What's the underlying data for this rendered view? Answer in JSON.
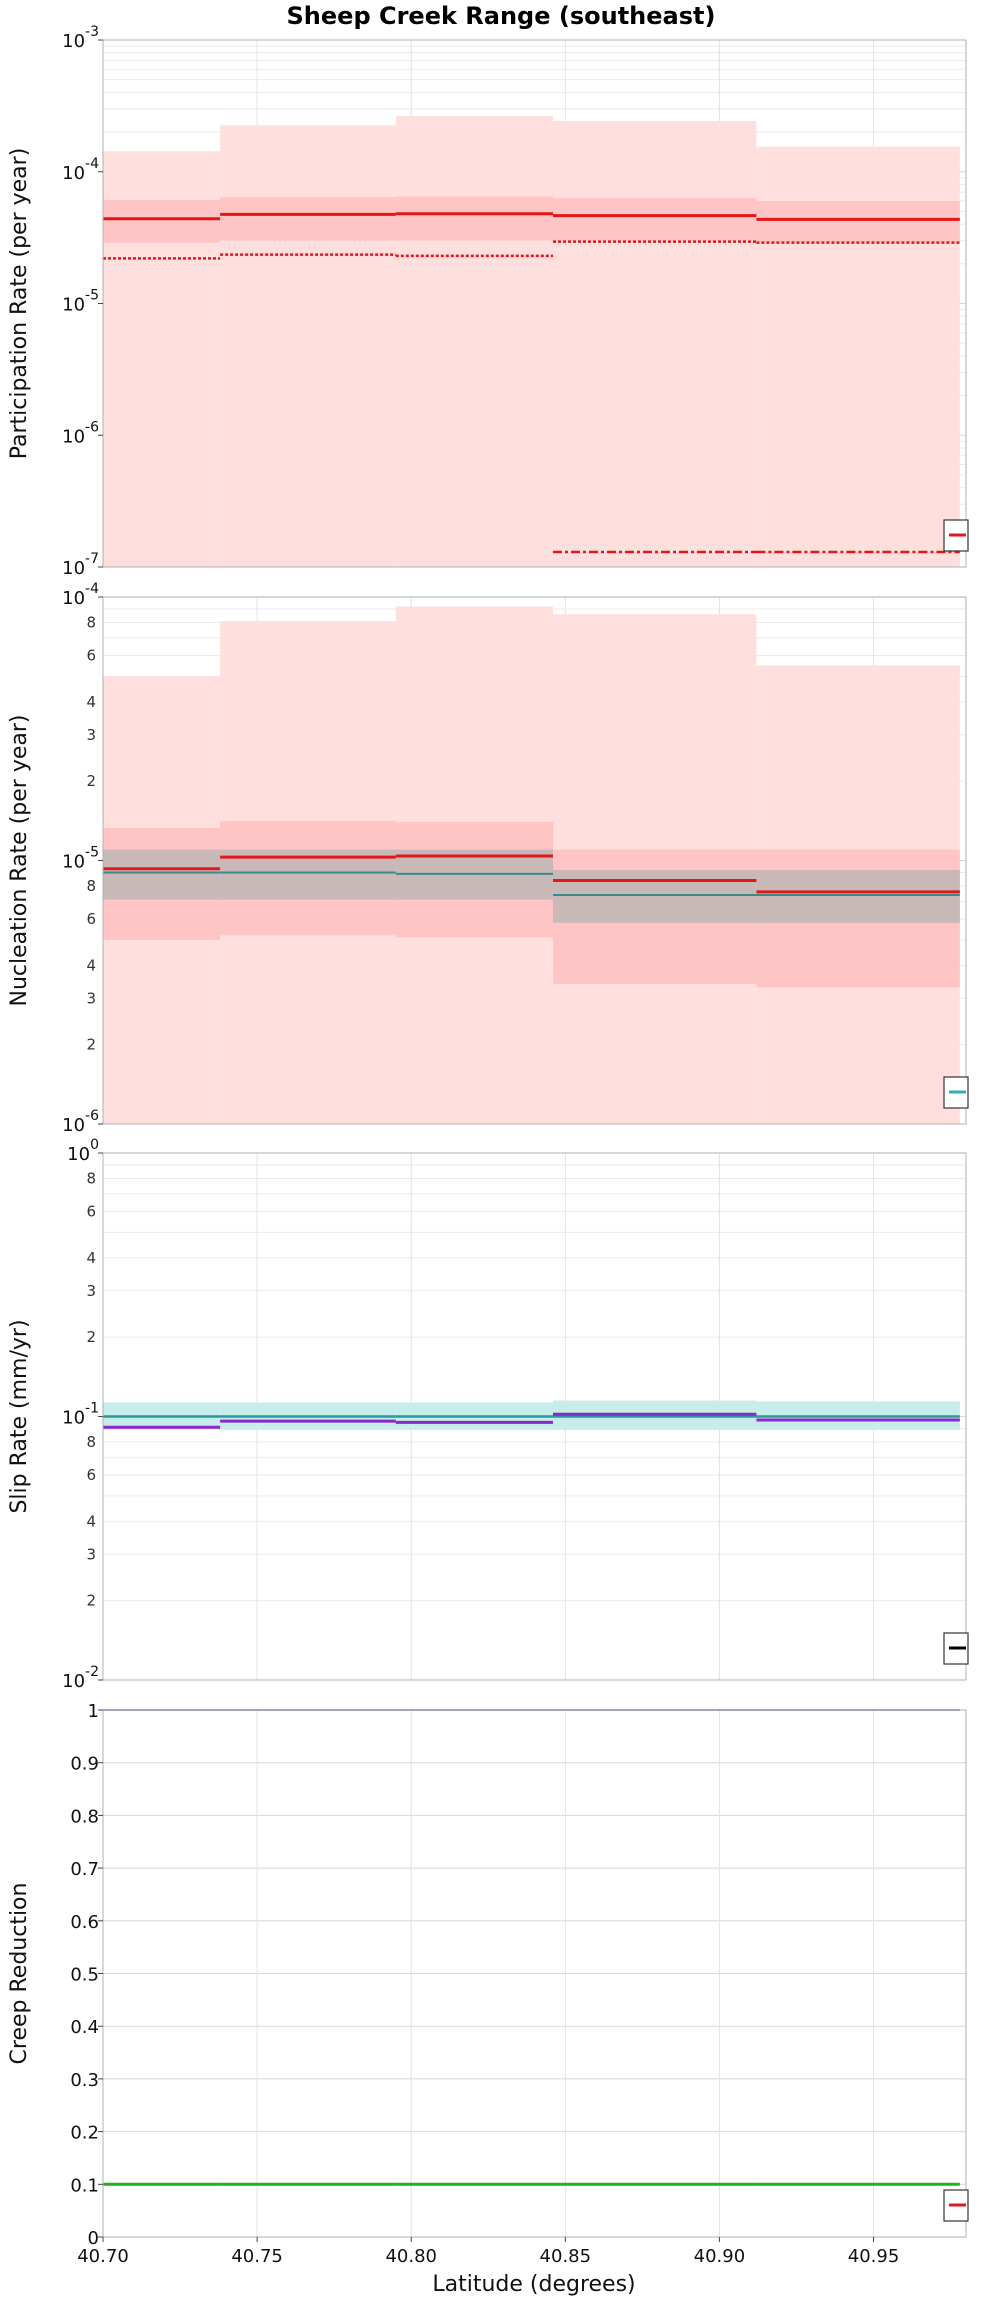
{
  "figure": {
    "title": "Sheep Creek Range (southeast)",
    "xlabel": "Latitude (degrees)",
    "xlim": [
      40.7,
      40.98
    ],
    "xticks": [
      "40.70",
      "40.75",
      "40.80",
      "40.85",
      "40.90",
      "40.95"
    ],
    "xtick_values": [
      40.7,
      40.75,
      40.8,
      40.85,
      40.9,
      40.95
    ],
    "bins": [
      40.7,
      40.738,
      40.795,
      40.846,
      40.912,
      40.978
    ]
  },
  "chart_data": [
    {
      "type": "line",
      "ylabel": "Participation Rate (per year)",
      "scale": "log",
      "ylim": [
        1e-07,
        0.001
      ],
      "grid": true,
      "yticks": [
        {
          "v": 1e-07,
          "base": "10",
          "exp": "-7"
        },
        {
          "v": 1e-06,
          "base": "10",
          "exp": "-6"
        },
        {
          "v": 1e-05,
          "base": "10",
          "exp": "-5"
        },
        {
          "v": 0.0001,
          "base": "10",
          "exp": "-4"
        },
        {
          "v": 0.001,
          "base": "10",
          "exp": "-3"
        }
      ],
      "minor_ticks": [],
      "bands": [
        {
          "color": "#ffdede",
          "lower": [
            1e-07,
            1e-07,
            1e-07,
            1e-07,
            1e-07
          ],
          "upper": [
            0.000143,
            0.000225,
            0.000265,
            0.000243,
            0.000155
          ]
        },
        {
          "color": "#ffc4c4",
          "lower": [
            2.9e-05,
            3e-05,
            3e-05,
            3e-05,
            2.9e-05
          ],
          "upper": [
            6.1e-05,
            6.4e-05,
            6.5e-05,
            6.3e-05,
            6e-05
          ]
        }
      ],
      "lines": [
        {
          "color": "#e01818",
          "width": 3,
          "dash": "",
          "values": [
            4.4e-05,
            4.75e-05,
            4.8e-05,
            4.65e-05,
            4.35e-05
          ]
        },
        {
          "color": "#e01818",
          "width": 2.5,
          "dash": "3,2",
          "values": [
            2.2e-05,
            2.35e-05,
            2.3e-05,
            2.95e-05,
            2.9e-05
          ]
        },
        {
          "color": "#e01818",
          "width": 2.5,
          "dash": "9,3,3,3",
          "values": [
            null,
            null,
            null,
            1.3e-07,
            1.3e-07
          ]
        }
      ],
      "legend": {
        "position": "bottom-right",
        "swatch_color": "#e01818"
      }
    },
    {
      "type": "line",
      "ylabel": "Nucleation Rate (per year)",
      "scale": "log",
      "ylim": [
        1e-06,
        0.0001
      ],
      "grid": true,
      "yticks": [
        {
          "v": 1e-06,
          "base": "10",
          "exp": "-6"
        },
        {
          "v": 1e-05,
          "base": "10",
          "exp": "-5"
        },
        {
          "v": 0.0001,
          "base": "10",
          "exp": "-4"
        }
      ],
      "minor_ticks": [
        {
          "v": 2e-06,
          "label": "2"
        },
        {
          "v": 3e-06,
          "label": "3"
        },
        {
          "v": 4e-06,
          "label": "4"
        },
        {
          "v": 6e-06,
          "label": "6"
        },
        {
          "v": 8e-06,
          "label": "8"
        },
        {
          "v": 2e-05,
          "label": "2"
        },
        {
          "v": 3e-05,
          "label": "3"
        },
        {
          "v": 4e-05,
          "label": "4"
        },
        {
          "v": 6e-05,
          "label": "6"
        },
        {
          "v": 8e-05,
          "label": "8"
        }
      ],
      "bands": [
        {
          "color": "#ffdede",
          "lower": [
            1e-06,
            1e-06,
            1e-06,
            1e-06,
            1e-06
          ],
          "upper": [
            5e-05,
            8.1e-05,
            9.2e-05,
            8.6e-05,
            5.5e-05
          ]
        },
        {
          "color": "#ffc4c4",
          "lower": [
            5e-06,
            5.2e-06,
            5.1e-06,
            3.4e-06,
            3.3e-06
          ],
          "upper": [
            1.33e-05,
            1.41e-05,
            1.4e-05,
            1.1e-05,
            1.1e-05
          ]
        },
        {
          "color": "#c8b8b8",
          "lower": [
            7.1e-06,
            7.1e-06,
            7.1e-06,
            5.8e-06,
            5.8e-06
          ],
          "upper": [
            1.1e-05,
            1.1e-05,
            1.1e-05,
            9.2e-06,
            9.2e-06
          ]
        }
      ],
      "lines": [
        {
          "color": "#3a8a8a",
          "width": 2,
          "dash": "",
          "values": [
            9e-06,
            9e-06,
            8.9e-06,
            7.4e-06,
            7.4e-06
          ]
        },
        {
          "color": "#e01818",
          "width": 3,
          "dash": "",
          "values": [
            9.3e-06,
            1.03e-05,
            1.04e-05,
            8.4e-06,
            7.6e-06
          ]
        }
      ],
      "legend": {
        "position": "bottom-right",
        "swatch_color": "#30b0b0"
      }
    },
    {
      "type": "line",
      "ylabel": "Slip Rate (mm/yr)",
      "scale": "log",
      "ylim": [
        0.01,
        1
      ],
      "grid": true,
      "yticks": [
        {
          "v": 0.01,
          "base": "10",
          "exp": "-2"
        },
        {
          "v": 0.1,
          "base": "10",
          "exp": "-1"
        },
        {
          "v": 1,
          "base": "10",
          "exp": "0"
        }
      ],
      "minor_ticks": [
        {
          "v": 0.02,
          "label": "2"
        },
        {
          "v": 0.03,
          "label": "3"
        },
        {
          "v": 0.04,
          "label": "4"
        },
        {
          "v": 0.06,
          "label": "6"
        },
        {
          "v": 0.08,
          "label": "8"
        },
        {
          "v": 0.2,
          "label": "2"
        },
        {
          "v": 0.3,
          "label": "3"
        },
        {
          "v": 0.4,
          "label": "4"
        },
        {
          "v": 0.6,
          "label": "6"
        },
        {
          "v": 0.8,
          "label": "8"
        }
      ],
      "bands": [
        {
          "color": "#c6ecec",
          "lower": [
            0.089,
            0.089,
            0.089,
            0.089,
            0.089
          ],
          "upper": [
            0.113,
            0.113,
            0.113,
            0.115,
            0.114
          ]
        }
      ],
      "lines": [
        {
          "color": "#2a9a9a",
          "width": 2.5,
          "dash": "",
          "values": [
            0.1,
            0.1,
            0.1,
            0.1,
            0.1
          ]
        },
        {
          "color": "#8a28c8",
          "width": 3,
          "dash": "",
          "values": [
            0.091,
            0.096,
            0.095,
            0.102,
            0.097
          ]
        }
      ],
      "legend": {
        "position": "bottom-right",
        "swatch_color": "#000000"
      }
    },
    {
      "type": "line",
      "ylabel": "Creep Reduction",
      "scale": "linear",
      "ylim": [
        0,
        1
      ],
      "grid": true,
      "yticks": [
        {
          "v": 0,
          "label": "0"
        },
        {
          "v": 0.1,
          "label": "0.1"
        },
        {
          "v": 0.2,
          "label": "0.2"
        },
        {
          "v": 0.3,
          "label": "0.3"
        },
        {
          "v": 0.4,
          "label": "0.4"
        },
        {
          "v": 0.5,
          "label": "0.5"
        },
        {
          "v": 0.6,
          "label": "0.6"
        },
        {
          "v": 0.7,
          "label": "0.7"
        },
        {
          "v": 0.8,
          "label": "0.8"
        },
        {
          "v": 0.9,
          "label": "0.9"
        },
        {
          "v": 1,
          "label": "1"
        }
      ],
      "minor_ticks": [],
      "bands": [],
      "lines": [
        {
          "color": "#2a2ab0",
          "width": 1.5,
          "dash": "",
          "values": [
            1,
            1,
            1,
            1,
            1
          ]
        },
        {
          "color": "#20b020",
          "width": 3,
          "dash": "",
          "values": [
            0.1,
            0.1,
            0.1,
            0.1,
            0.1
          ]
        }
      ],
      "legend": {
        "position": "bottom-right",
        "swatch_color": "#e01818"
      }
    }
  ]
}
